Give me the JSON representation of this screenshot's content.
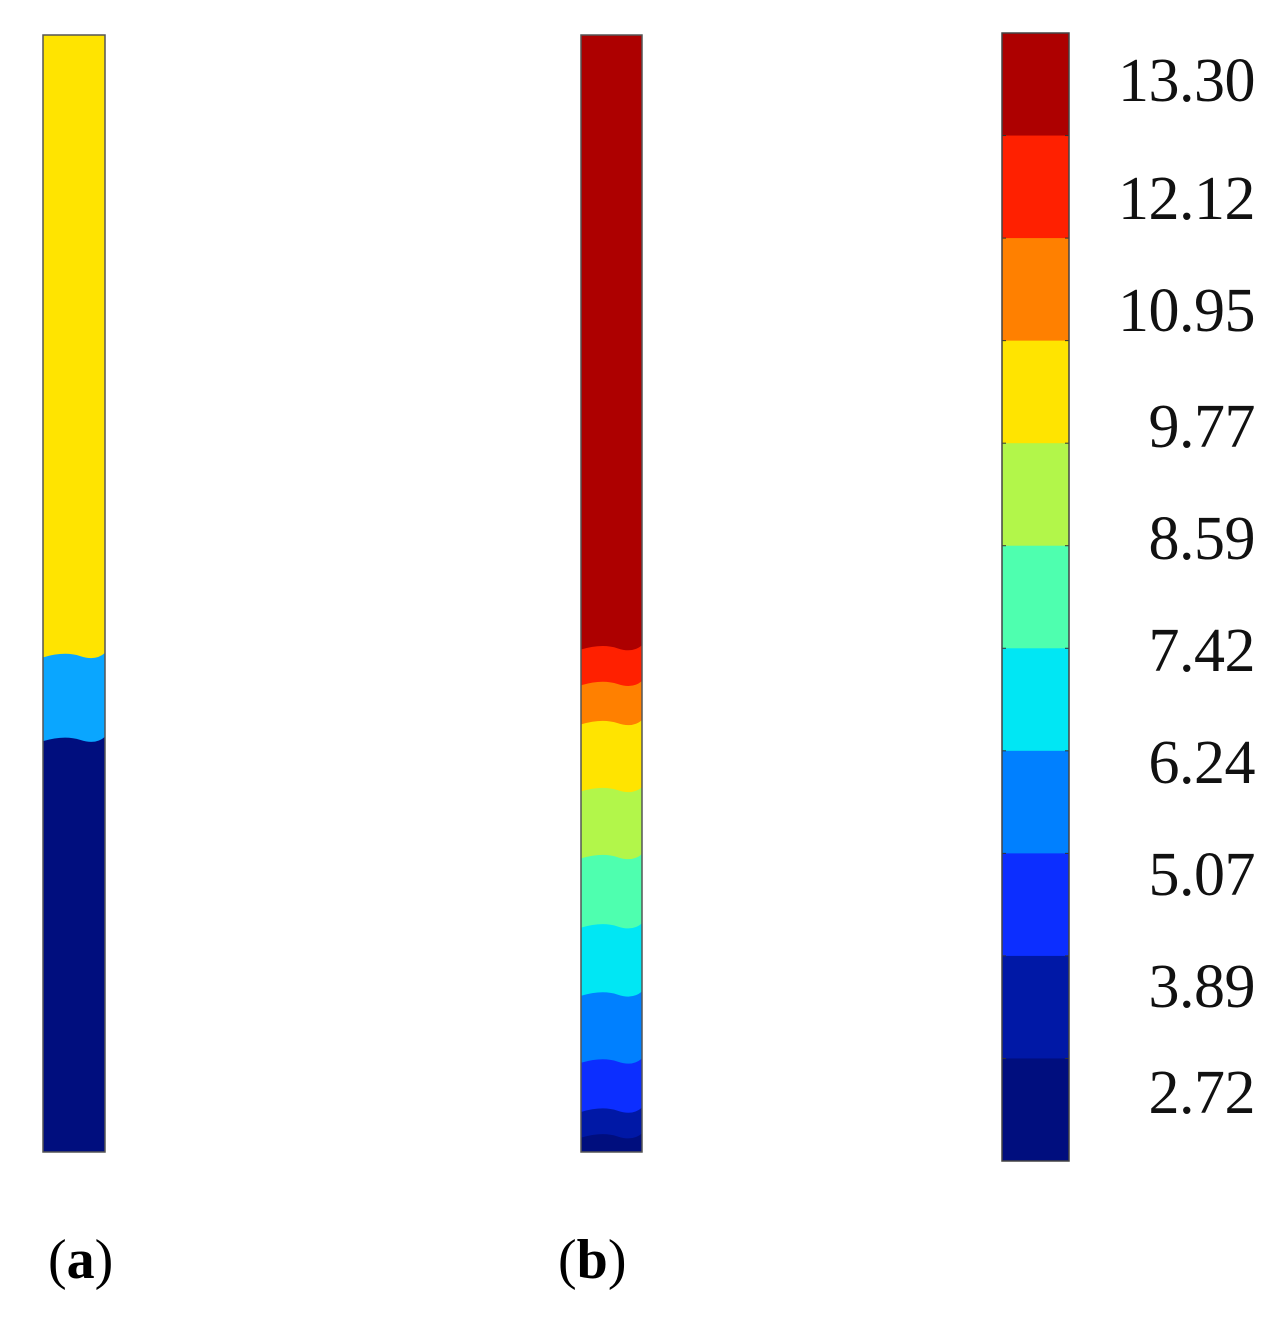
{
  "legend": {
    "ticks": [
      "13.30",
      "12.12",
      "10.95",
      "9.77",
      "8.59",
      "7.42",
      "6.24",
      "5.07",
      "3.89",
      "2.72"
    ],
    "colors": [
      "#ad0000",
      "#ff2000",
      "#ff8000",
      "#ffe400",
      "#b2f64a",
      "#4effaf",
      "#00e7f4",
      "#0080ff",
      "#0c2eff",
      "#0018a6",
      "#000e7e"
    ]
  },
  "panels": [
    {
      "label_open": "(",
      "label_letter": "a",
      "label_close": ")",
      "bands": [
        {
          "color": "#ffe400",
          "from": 0.0,
          "to": 0.555
        },
        {
          "color": "#0aa6ff",
          "from": 0.555,
          "to": 0.63
        },
        {
          "color": "#000e7e",
          "from": 0.63,
          "to": 1.0
        }
      ]
    },
    {
      "label_open": "(",
      "label_letter": "b",
      "label_close": ")",
      "bands": [
        {
          "color": "#ad0000",
          "from": 0.0,
          "to": 0.548
        },
        {
          "color": "#ff2000",
          "from": 0.548,
          "to": 0.58
        },
        {
          "color": "#ff8000",
          "from": 0.58,
          "to": 0.615
        },
        {
          "color": "#ffe400",
          "from": 0.615,
          "to": 0.675
        },
        {
          "color": "#b2f64a",
          "from": 0.675,
          "to": 0.735
        },
        {
          "color": "#4effaf",
          "from": 0.735,
          "to": 0.797
        },
        {
          "color": "#00e7f4",
          "from": 0.797,
          "to": 0.858
        },
        {
          "color": "#0080ff",
          "from": 0.858,
          "to": 0.918
        },
        {
          "color": "#0c2eff",
          "from": 0.918,
          "to": 0.962
        },
        {
          "color": "#0018a6",
          "from": 0.962,
          "to": 0.985
        },
        {
          "color": "#000e7e",
          "from": 0.985,
          "to": 1.0
        }
      ]
    }
  ]
}
